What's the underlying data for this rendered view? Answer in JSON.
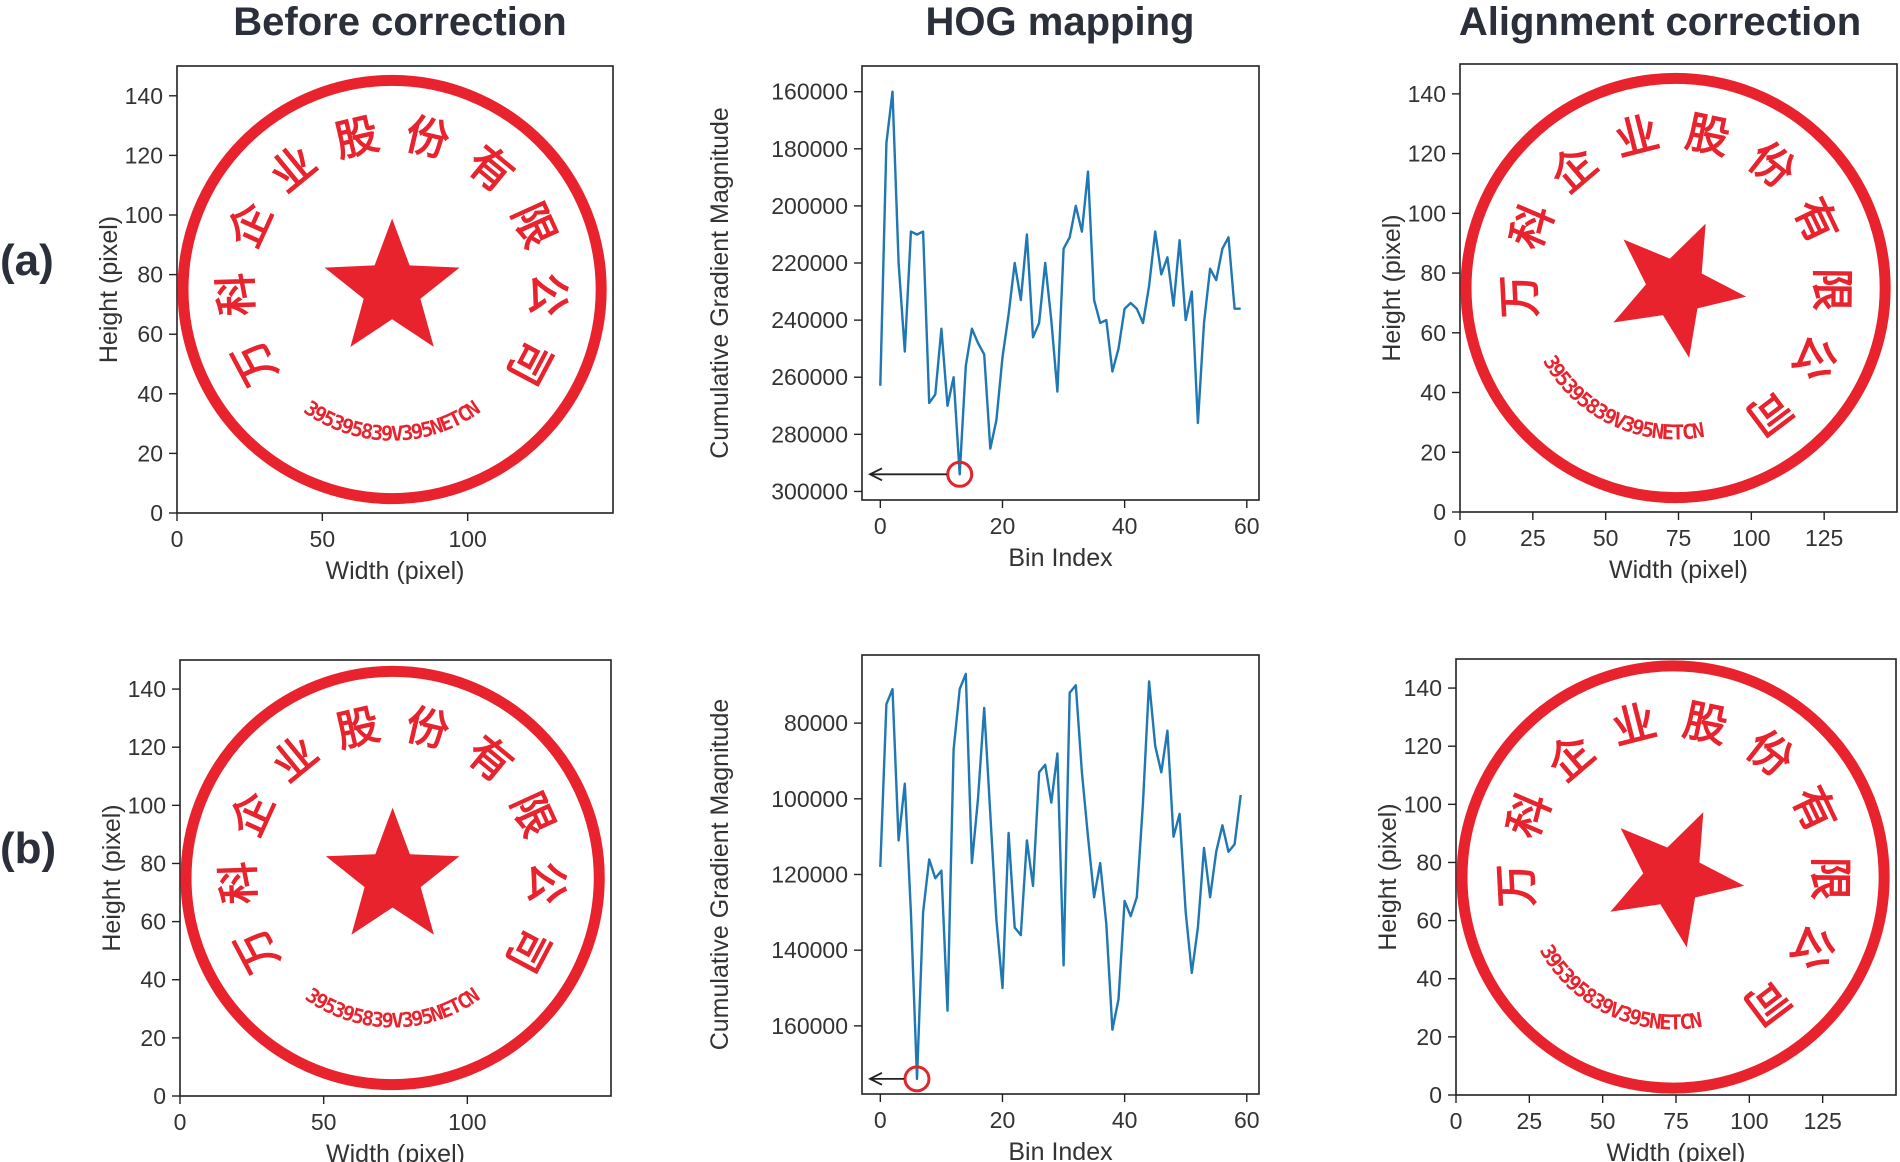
{
  "column_titles": {
    "before": "Before correction",
    "hog": "HOG mapping",
    "after": "Alignment correction"
  },
  "row_labels": {
    "a": "(a)",
    "b": "(b)"
  },
  "stamp": {
    "chars": [
      "万",
      "科",
      "企",
      "业",
      "股",
      "份",
      "有",
      "限",
      "公",
      "司"
    ],
    "code": "395395839V395NETCN",
    "color": "#e8232d"
  },
  "chart_data": [
    {
      "id": "a-before",
      "type": "image",
      "title": "Before correction",
      "row": "(a)",
      "xlabel": "Width (pixel)",
      "ylabel": "Height (pixel)",
      "xticks": [
        0,
        50,
        100
      ],
      "yticks": [
        0,
        20,
        40,
        60,
        80,
        100,
        120,
        140
      ],
      "xlim": [
        0,
        150
      ],
      "ylim": [
        150,
        0
      ],
      "stamp_rotation_deg": 0
    },
    {
      "id": "a-hog",
      "type": "line",
      "title": "HOG mapping",
      "row": "(a)",
      "xlabel": "Bin Index",
      "ylabel": "Cumulative Gradient Magnitude",
      "xlim": [
        -3,
        62
      ],
      "ylim": [
        151000,
        303000
      ],
      "xticks": [
        0,
        20,
        40,
        60
      ],
      "yticks": [
        160000,
        180000,
        200000,
        220000,
        240000,
        260000,
        280000,
        300000
      ],
      "series": [
        {
          "name": "HOG",
          "color": "#1f77b4",
          "x": [
            0,
            1,
            2,
            3,
            4,
            5,
            6,
            7,
            8,
            9,
            10,
            11,
            12,
            13,
            14,
            15,
            16,
            17,
            18,
            19,
            20,
            21,
            22,
            23,
            24,
            25,
            26,
            27,
            28,
            29,
            30,
            31,
            32,
            33,
            34,
            35,
            36,
            37,
            38,
            39,
            40,
            41,
            42,
            43,
            44,
            45,
            46,
            47,
            48,
            49,
            50,
            51,
            52,
            53,
            54,
            55,
            56,
            57,
            58,
            59
          ],
          "y": [
            263000,
            178000,
            160000,
            220000,
            251000,
            209000,
            210000,
            209000,
            269000,
            266000,
            243000,
            270000,
            260000,
            294000,
            256000,
            243000,
            248000,
            252000,
            285000,
            275000,
            253000,
            238000,
            220000,
            233000,
            210000,
            246000,
            241000,
            220000,
            240000,
            265000,
            215000,
            211000,
            200000,
            209000,
            188000,
            233000,
            241000,
            240000,
            258000,
            250000,
            236000,
            234000,
            236000,
            241000,
            228000,
            209000,
            224000,
            218000,
            235000,
            212000,
            240000,
            230000,
            276000,
            241000,
            222000,
            226000,
            215000,
            211000,
            236000,
            236000
          ]
        }
      ],
      "peak": {
        "x": 13,
        "y": 294000
      }
    },
    {
      "id": "a-after",
      "type": "image",
      "title": "Alignment correction",
      "row": "(a)",
      "xlabel": "Width (pixel)",
      "ylabel": "Height (pixel)",
      "xticks": [
        0,
        25,
        50,
        75,
        100,
        125
      ],
      "yticks": [
        0,
        20,
        40,
        60,
        80,
        100,
        120,
        140
      ],
      "xlim": [
        0,
        150
      ],
      "ylim": [
        150,
        0
      ],
      "stamp_rotation_deg": 25
    },
    {
      "id": "b-before",
      "type": "image",
      "title": "Before correction",
      "row": "(b)",
      "xlabel": "Width (pixel)",
      "ylabel": "Height (pixel)",
      "xticks": [
        0,
        50,
        100
      ],
      "yticks": [
        0,
        20,
        40,
        60,
        80,
        100,
        120,
        140
      ],
      "xlim": [
        0,
        150
      ],
      "ylim": [
        150,
        0
      ],
      "stamp_rotation_deg": 0
    },
    {
      "id": "b-hog",
      "type": "line",
      "title": "HOG mapping",
      "row": "(b)",
      "xlabel": "Bin Index",
      "ylabel": "Cumulative Gradient Magnitude",
      "xlim": [
        -3,
        62
      ],
      "ylim": [
        62000,
        178000
      ],
      "xticks": [
        0,
        20,
        40,
        60
      ],
      "yticks": [
        80000,
        100000,
        120000,
        140000,
        160000
      ],
      "series": [
        {
          "name": "HOG",
          "color": "#1f77b4",
          "x": [
            0,
            1,
            2,
            3,
            4,
            5,
            6,
            7,
            8,
            9,
            10,
            11,
            12,
            13,
            14,
            15,
            16,
            17,
            18,
            19,
            20,
            21,
            22,
            23,
            24,
            25,
            26,
            27,
            28,
            29,
            30,
            31,
            32,
            33,
            34,
            35,
            36,
            37,
            38,
            39,
            40,
            41,
            42,
            43,
            44,
            45,
            46,
            47,
            48,
            49,
            50,
            51,
            52,
            53,
            54,
            55,
            56,
            57,
            58,
            59
          ],
          "y": [
            118000,
            75000,
            71000,
            111000,
            96000,
            130000,
            174000,
            130000,
            116000,
            121000,
            119000,
            156000,
            87000,
            71000,
            67000,
            117000,
            100000,
            76000,
            104000,
            132000,
            150000,
            109000,
            134000,
            136000,
            111000,
            123000,
            93000,
            91000,
            101000,
            88000,
            144000,
            72000,
            70000,
            93000,
            110000,
            126000,
            117000,
            133000,
            161000,
            153000,
            127000,
            131000,
            126000,
            101000,
            69000,
            86000,
            93000,
            82000,
            110000,
            104000,
            130000,
            146000,
            134000,
            113000,
            126000,
            114000,
            107000,
            114000,
            112000,
            99000
          ]
        }
      ],
      "peak": {
        "x": 6,
        "y": 174000
      }
    },
    {
      "id": "b-after",
      "type": "image",
      "title": "Alignment correction",
      "row": "(b)",
      "xlabel": "Width (pixel)",
      "ylabel": "Height (pixel)",
      "xticks": [
        0,
        25,
        50,
        75,
        100,
        125
      ],
      "yticks": [
        0,
        20,
        40,
        60,
        80,
        100,
        120,
        140
      ],
      "xlim": [
        0,
        150
      ],
      "ylim": [
        150,
        0
      ],
      "stamp_rotation_deg": 25
    }
  ]
}
